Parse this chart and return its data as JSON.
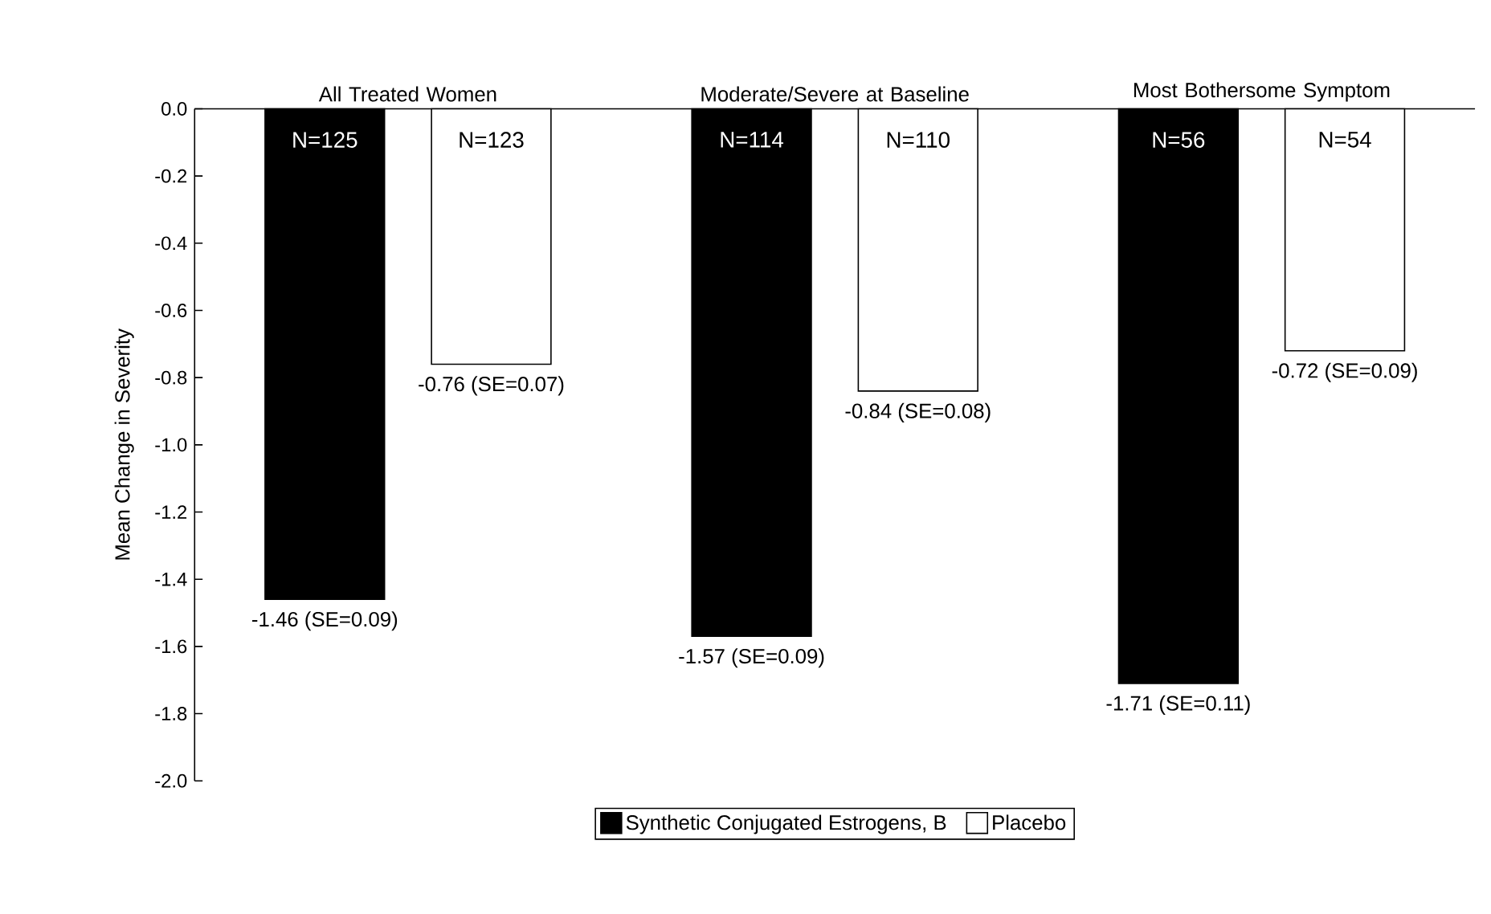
{
  "chart_data": {
    "type": "bar",
    "ylabel": "Mean Change in Severity",
    "categories": [
      "All Treated Women",
      "Moderate/Severe at Baseline",
      "Most Bothersome Symptom"
    ],
    "series": [
      {
        "name": "Synthetic Conjugated Estrogens, B",
        "color": "#000000",
        "values": [
          -1.46,
          -1.57,
          -1.71
        ],
        "value_labels": [
          "-1.46 (SE=0.09)",
          "-1.57 (SE=0.09)",
          "-1.71 (SE=0.11)"
        ]
      },
      {
        "name": "Placebo",
        "color": "#ffffff",
        "values": [
          -0.76,
          -0.84,
          -0.72
        ],
        "value_labels": [
          "-0.76 (SE=0.07)",
          "-0.84 (SE=0.08)",
          "-0.72 (SE=0.09)"
        ]
      }
    ],
    "annotations": [
      "N=125",
      "N=123",
      "N=114",
      "N=110",
      "N=56",
      "N=54"
    ],
    "ylim": [
      -2.0,
      0.0
    ],
    "yticks": [
      {
        "value": 0,
        "label": "0.0"
      },
      -0.2,
      -0.4,
      -0.6,
      -0.8,
      {
        "value": -1.0,
        "label": "-1.0"
      },
      -1.2,
      -1.4,
      -1.6,
      -1.8,
      {
        "value": -2.0,
        "label": "-2.0"
      }
    ],
    "grid": false,
    "legend": "bottom"
  }
}
